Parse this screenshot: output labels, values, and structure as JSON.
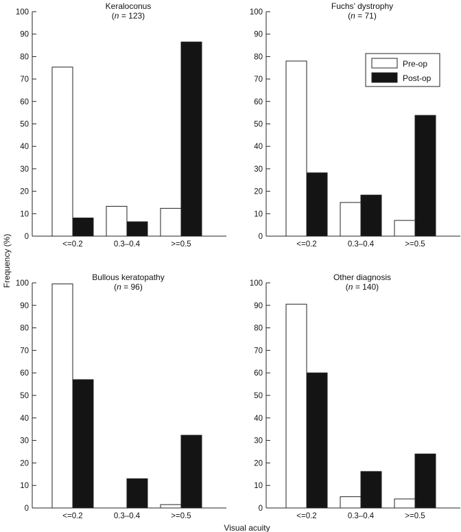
{
  "chart_data": [
    {
      "type": "bar",
      "title": "Keraloconus",
      "subtitle_n": "123",
      "categories": [
        "<=0.2",
        "0.3–0.4",
        ">=0.5"
      ],
      "series": [
        {
          "name": "Pre-op",
          "values": [
            75.3,
            13.3,
            12.4
          ]
        },
        {
          "name": "Post-op",
          "values": [
            8.1,
            6.4,
            86.5
          ]
        }
      ],
      "ylim": [
        0,
        100
      ]
    },
    {
      "type": "bar",
      "title": "Fuchs’ dystrophy",
      "subtitle_n": "71",
      "categories": [
        "<=0.2",
        "0.3–0.4",
        ">=0.5"
      ],
      "series": [
        {
          "name": "Pre-op",
          "values": [
            78.0,
            15.0,
            7.0
          ]
        },
        {
          "name": "Post-op",
          "values": [
            28.2,
            18.3,
            53.8
          ]
        }
      ],
      "ylim": [
        0,
        100
      ]
    },
    {
      "type": "bar",
      "title": "Bullous keratopathy",
      "subtitle_n": "96",
      "categories": [
        "<=0.2",
        "0.3–0.4",
        ">=0.5"
      ],
      "series": [
        {
          "name": "Pre-op",
          "values": [
            99.5,
            0,
            1.5
          ]
        },
        {
          "name": "Post-op",
          "values": [
            57.0,
            13.0,
            32.3
          ]
        }
      ],
      "ylim": [
        0,
        100
      ]
    },
    {
      "type": "bar",
      "title": "Other diagnosis",
      "subtitle_n": "140",
      "categories": [
        "<=0.2",
        "0.3–0.4",
        ">=0.5"
      ],
      "series": [
        {
          "name": "Pre-op",
          "values": [
            90.5,
            5.0,
            4.0
          ]
        },
        {
          "name": "Post-op",
          "values": [
            60.0,
            16.2,
            24.0
          ]
        }
      ],
      "ylim": [
        0,
        100
      ]
    }
  ],
  "yticks": [
    "0",
    "10",
    "20",
    "30",
    "40",
    "50",
    "60",
    "70",
    "80",
    "90",
    "100"
  ],
  "ylabel": "Frequency (%)",
  "xlabel": "Visual acuity",
  "n_label": "n",
  "legend": {
    "placement": "top-right of Fuchs' dystrophy panel",
    "entries": [
      "Pre-op",
      "Post-op"
    ]
  },
  "colors": {
    "pre": "#ffffff",
    "post": "#141414",
    "stroke": "#222222"
  }
}
